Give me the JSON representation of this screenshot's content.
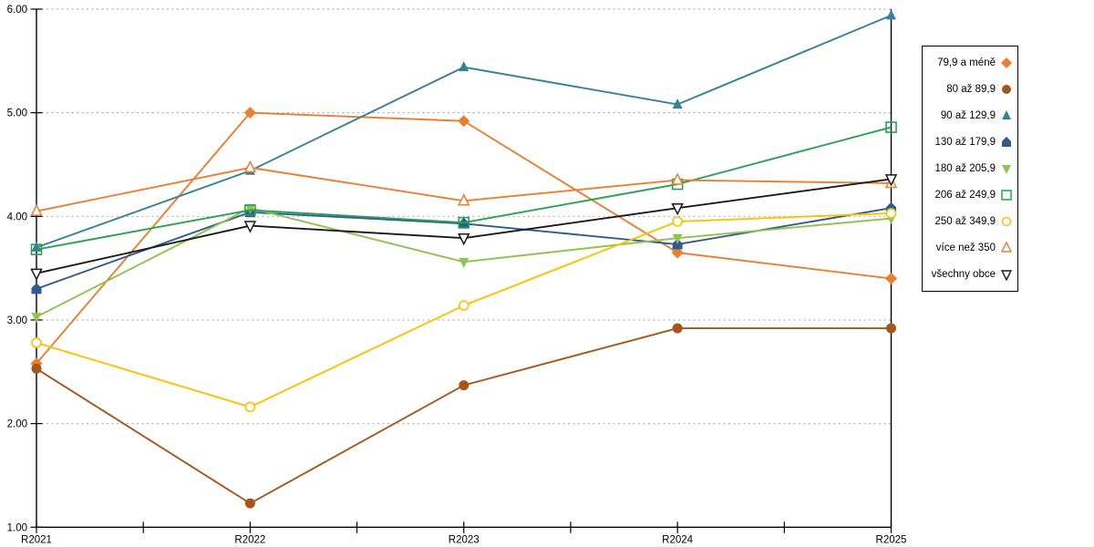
{
  "chart_data": {
    "type": "line",
    "title": "",
    "xlabel": "",
    "ylabel": "",
    "categories": [
      "R2021",
      "R2022",
      "R2023",
      "R2024",
      "R2025"
    ],
    "y_ticks": [
      "1.00",
      "2.00",
      "3.00",
      "4.00",
      "5.00",
      "6.00"
    ],
    "ylim": [
      1.0,
      6.0
    ],
    "grid": "horizontal-dotted",
    "legend_position": "right",
    "colors": {
      "grid": "#b3b3b3",
      "axis": "#000000"
    },
    "series": [
      {
        "name": "79,9 a méně",
        "color": "#ED7D31",
        "marker": "diamond-filled",
        "values": [
          2.58,
          5.0,
          4.92,
          3.65,
          3.4
        ]
      },
      {
        "name": "80 až 89,9",
        "color": "#A6551D",
        "marker": "circle-filled",
        "values": [
          2.53,
          1.23,
          2.37,
          2.92,
          2.92
        ]
      },
      {
        "name": "90 až 129,9",
        "color": "#35809B",
        "marker": "triangle-up-filled",
        "values": [
          3.7,
          4.44,
          5.44,
          5.08,
          5.94
        ]
      },
      {
        "name": "130 až 179,9",
        "color": "#2F5B8F",
        "marker": "pentagon-filled",
        "values": [
          3.3,
          4.04,
          3.93,
          3.73,
          4.08
        ]
      },
      {
        "name": "180 až 205,9",
        "color": "#90C24D",
        "marker": "triangle-down-filled",
        "values": [
          3.03,
          4.08,
          3.56,
          3.79,
          3.98
        ]
      },
      {
        "name": "206 až 249,9",
        "color": "#27A253",
        "marker": "square-open",
        "values": [
          3.68,
          4.06,
          3.94,
          4.31,
          4.86
        ]
      },
      {
        "name": "250 až 349,9",
        "color": "#FFC000",
        "marker": "circle-open",
        "values": [
          2.78,
          2.16,
          3.14,
          3.95,
          4.03
        ]
      },
      {
        "name": "více než 350",
        "color": "#ED7D31",
        "marker": "triangle-up-open",
        "values": [
          4.05,
          4.47,
          4.15,
          4.35,
          4.32
        ]
      },
      {
        "name": "všechny obce",
        "color": "#1A1A1A",
        "marker": "triangle-down-open",
        "values": [
          3.45,
          3.91,
          3.79,
          4.08,
          4.36
        ]
      }
    ]
  }
}
